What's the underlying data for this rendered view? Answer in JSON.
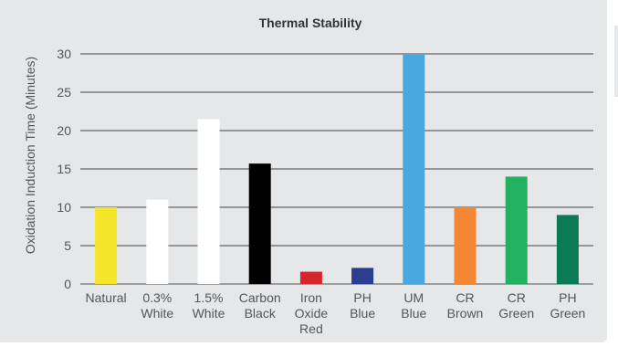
{
  "chart_data": {
    "type": "bar",
    "title": "Thermal Stability",
    "ylabel": "Oxidation Induction Time (Minutes)",
    "xlabel": "",
    "ylim": [
      0,
      30
    ],
    "yticks": [
      0,
      5,
      10,
      15,
      20,
      25,
      30
    ],
    "grid": true,
    "categories": [
      [
        "Natural"
      ],
      [
        "0.3%",
        "White"
      ],
      [
        "1.5%",
        "White"
      ],
      [
        "Carbon",
        "Black"
      ],
      [
        "Iron",
        "Oxide",
        "Red"
      ],
      [
        "PH",
        "Blue"
      ],
      [
        "UM",
        "Blue"
      ],
      [
        "CR",
        "Brown"
      ],
      [
        "CR",
        "Green"
      ],
      [
        "PH",
        "Green"
      ]
    ],
    "values": [
      10,
      11,
      21.5,
      15.7,
      1.6,
      2.1,
      30,
      10,
      14,
      9
    ],
    "colors": [
      "#f5e52a",
      "#ffffff",
      "#ffffff",
      "#000000",
      "#d7262b",
      "#2a3d8f",
      "#4aa8e0",
      "#f58634",
      "#22b160",
      "#0b7a55"
    ]
  }
}
